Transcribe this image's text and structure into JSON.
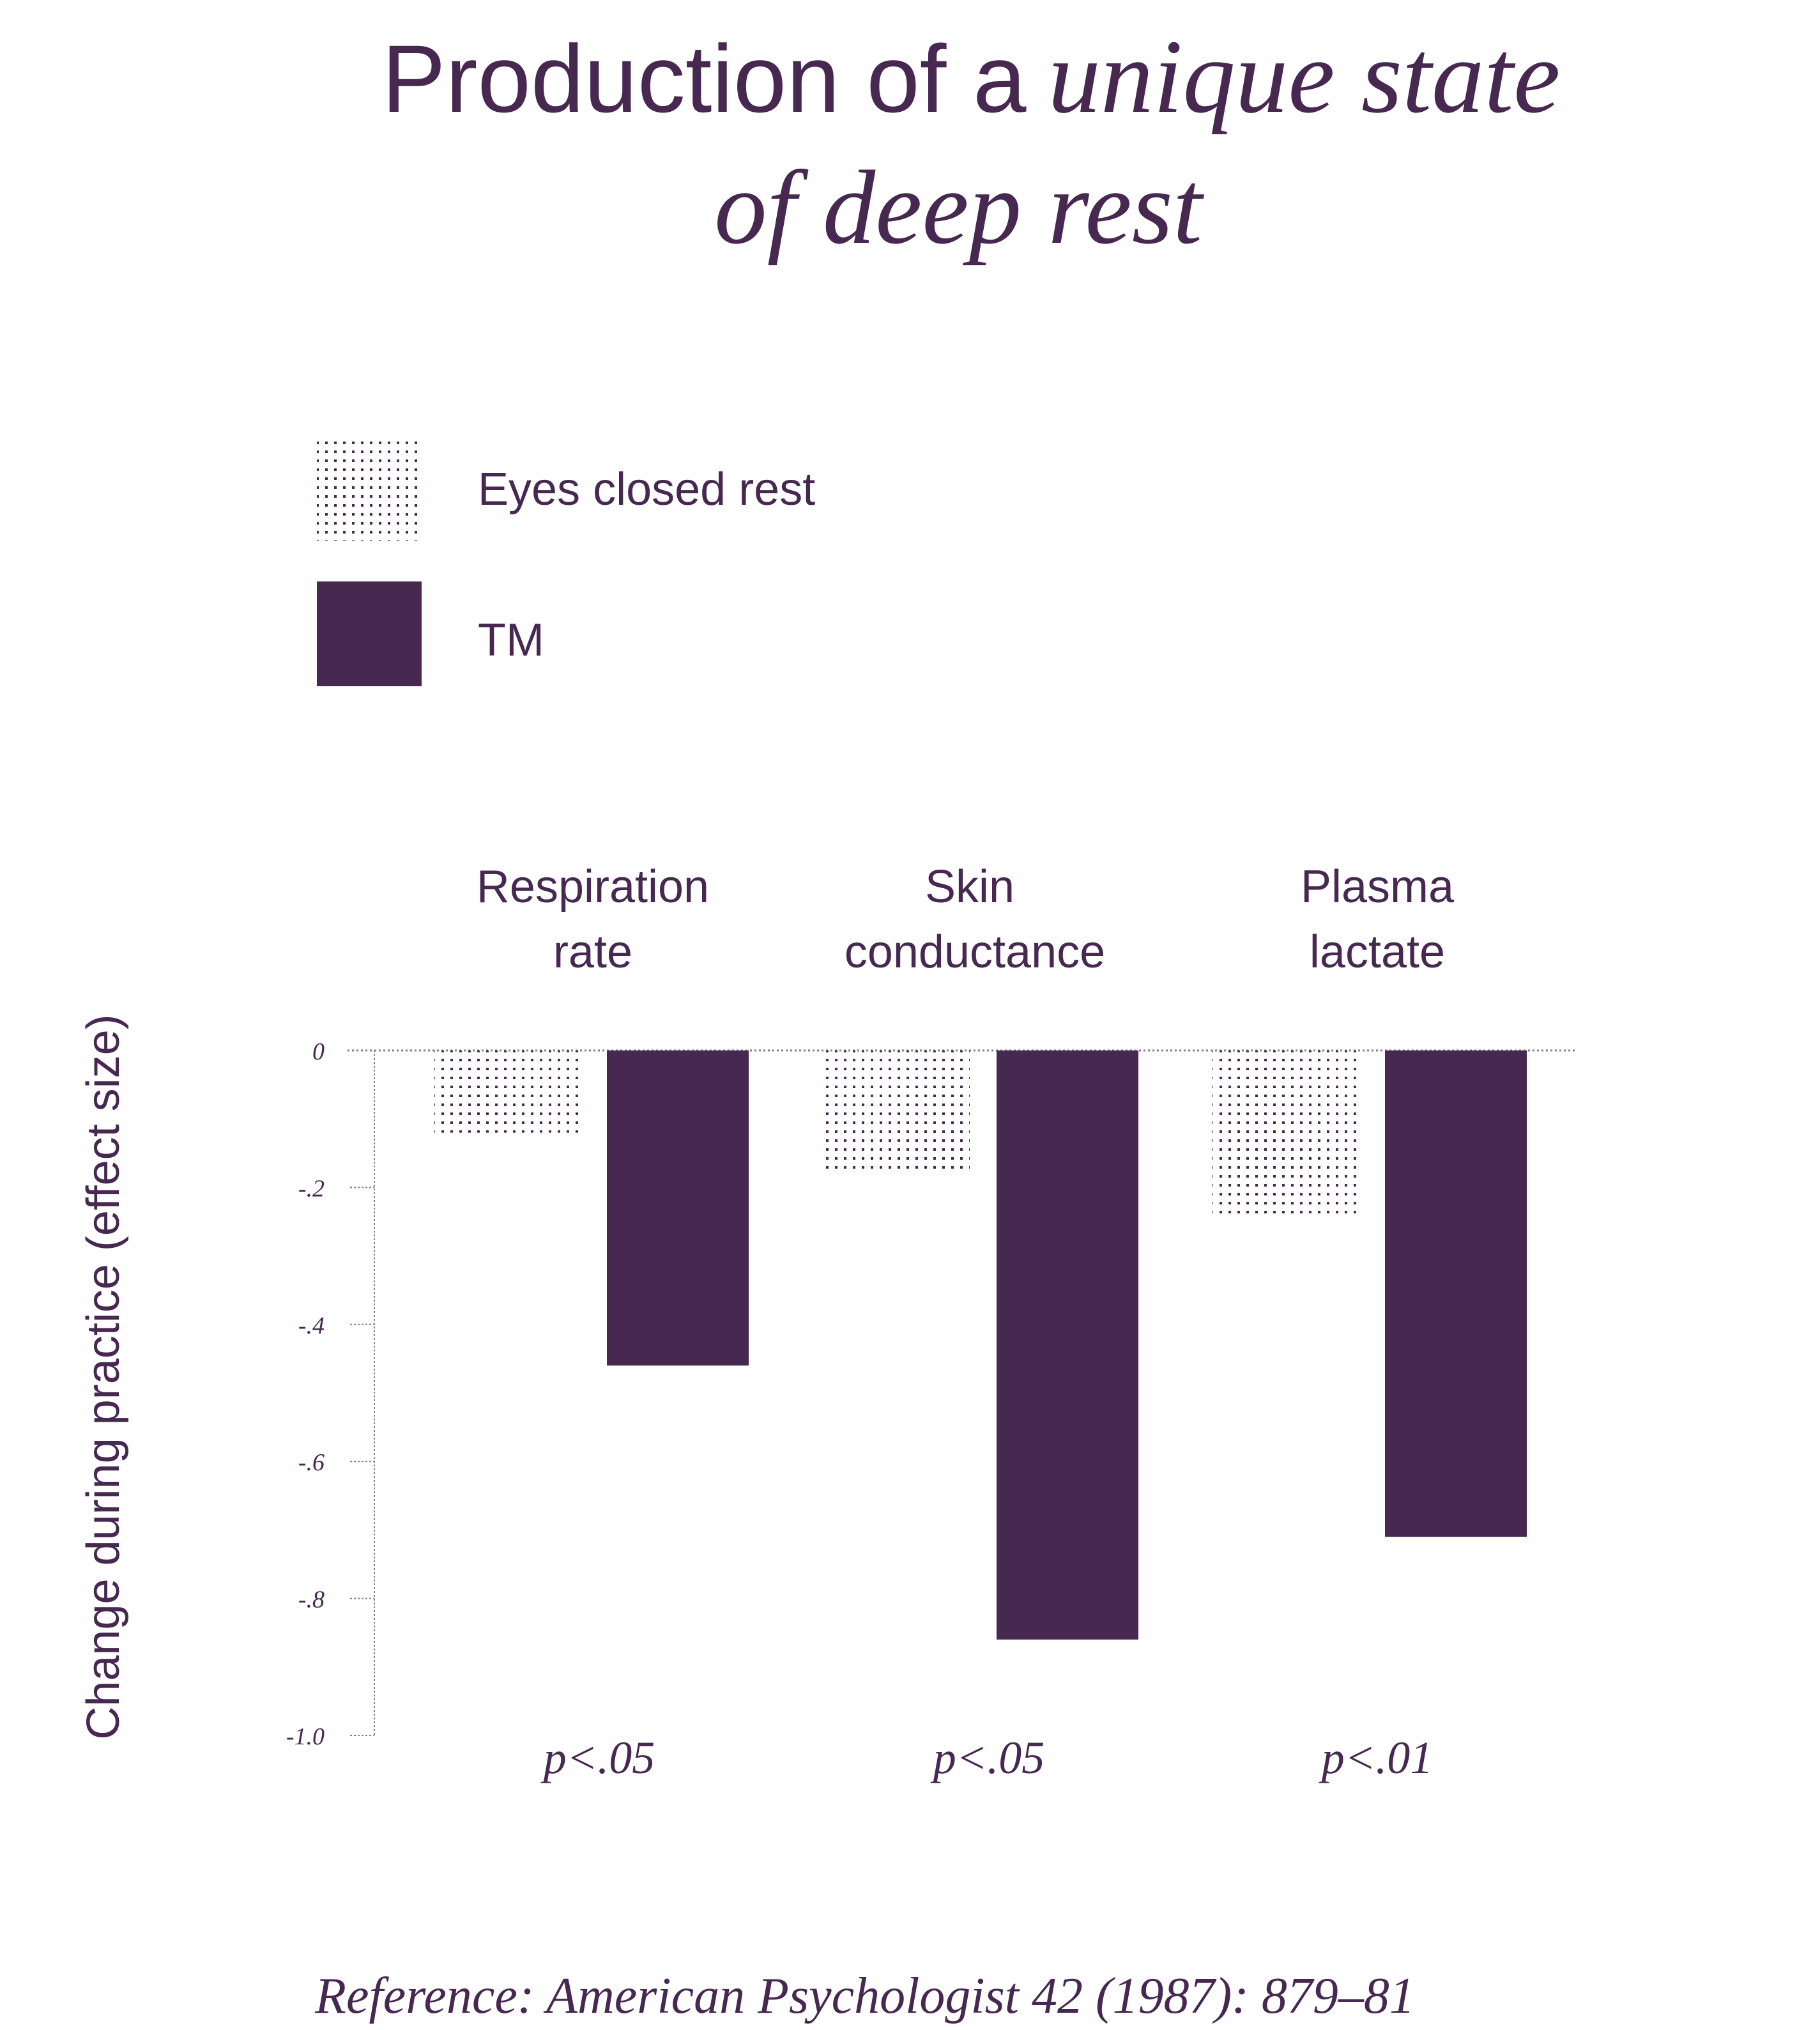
{
  "title": {
    "line1_plain": "Production of a",
    "line1_italic": "unique state",
    "line2_italic": "of deep rest"
  },
  "colors": {
    "primary": "#462850",
    "grid": "#8a7a8e",
    "background": "#ffffff"
  },
  "legend": {
    "position": "top-left",
    "items": [
      {
        "label": "Eyes closed rest",
        "style": "dotted"
      },
      {
        "label": "TM",
        "style": "solid"
      }
    ]
  },
  "reference": "Reference: American Psychologist 42 (1987): 879–81",
  "chart_data": {
    "type": "bar",
    "categories": [
      {
        "line1": "Respiration",
        "line2": "rate"
      },
      {
        "line1": "Skin",
        "line2": "conductance"
      },
      {
        "line1": "Plasma",
        "line2": "lactate"
      }
    ],
    "series": [
      {
        "name": "Eyes closed rest",
        "values": [
          -0.12,
          -0.18,
          -0.24
        ]
      },
      {
        "name": "TM",
        "values": [
          -0.46,
          -0.86,
          -0.71
        ]
      }
    ],
    "ylabel": "Change during practice (effect size)",
    "ylim": [
      -1.0,
      0
    ],
    "yticks": [
      "0",
      "-.2",
      "-.4",
      "-.6",
      "-.8",
      "-1.0"
    ],
    "annotations": [
      "p<.05",
      "p<.05",
      "p<.01"
    ],
    "grid": false
  }
}
